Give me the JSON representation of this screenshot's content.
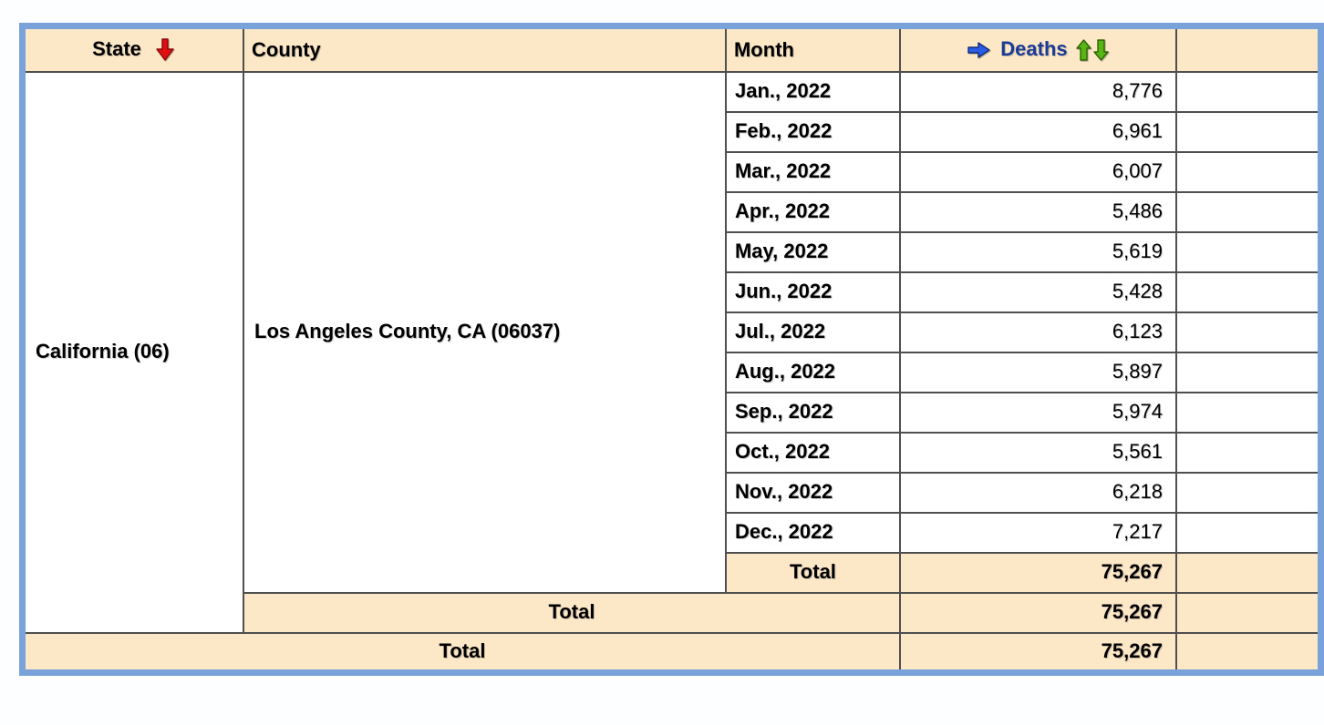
{
  "colors": {
    "page-bg": "#FDFEFF",
    "band": "#FCE7C7",
    "frame": "#79A2DB",
    "grid": "#4F4F4F",
    "deaths-navy": "#1A3C96",
    "sort-red": "#E01010",
    "sort-green": "#58B513",
    "pointer-blue": "#2B5CE6"
  },
  "table": {
    "headers": {
      "state": "State",
      "county": "County",
      "month": "Month",
      "deaths": "Deaths",
      "extra": ""
    },
    "icons": {
      "state_sort": "red-down-arrow-icon",
      "deaths_pointer": "blue-right-arrow-icon",
      "deaths_sort_asc": "green-up-arrow-icon",
      "deaths_sort_desc": "green-down-arrow-icon"
    },
    "state": {
      "label": "California (06)"
    },
    "county": {
      "label": "Los Angeles County, CA (06037)"
    },
    "rows": [
      {
        "month": "Jan., 2022",
        "deaths": "8,776"
      },
      {
        "month": "Feb., 2022",
        "deaths": "6,961"
      },
      {
        "month": "Mar., 2022",
        "deaths": "6,007"
      },
      {
        "month": "Apr., 2022",
        "deaths": "5,486"
      },
      {
        "month": "May, 2022",
        "deaths": "5,619"
      },
      {
        "month": "Jun., 2022",
        "deaths": "5,428"
      },
      {
        "month": "Jul., 2022",
        "deaths": "6,123"
      },
      {
        "month": "Aug., 2022",
        "deaths": "5,897"
      },
      {
        "month": "Sep., 2022",
        "deaths": "5,974"
      },
      {
        "month": "Oct., 2022",
        "deaths": "5,561"
      },
      {
        "month": "Nov., 2022",
        "deaths": "6,218"
      },
      {
        "month": "Dec., 2022",
        "deaths": "7,217"
      }
    ],
    "month_total": {
      "label": "Total",
      "deaths": "75,267"
    },
    "county_total": {
      "label": "Total",
      "deaths": "75,267"
    },
    "state_total": {
      "label": "Total",
      "deaths": "75,267"
    }
  }
}
